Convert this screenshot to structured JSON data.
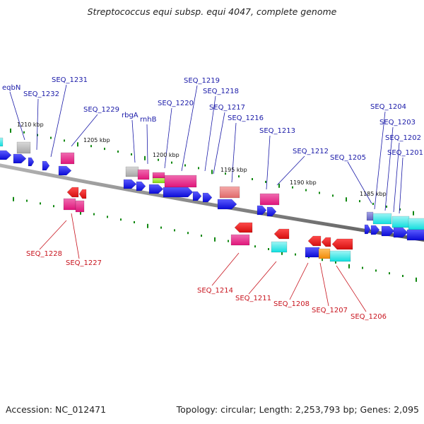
{
  "title": "Streptococcus equi subsp. equi 4047, complete genome",
  "footer": {
    "accession": "Accession: NC_012471",
    "topology": "Topology: circular; Length: 2,253,793 bp; Genes: 2,095"
  },
  "scale_labels": [
    "1210 kbp",
    "1205 kbp",
    "1200 kbp",
    "1195 kbp",
    "1190 kbp",
    "1185 kbp"
  ],
  "labels_top": [
    "eqbN",
    "SEQ_1232",
    "SEQ_1231",
    "SEQ_1229",
    "rbgA",
    "rnhB",
    "SEQ_1220",
    "SEQ_1219",
    "SEQ_1218",
    "SEQ_1217",
    "SEQ_1216",
    "SEQ_1213",
    "SEQ_1212",
    "SEQ_1205",
    "SEQ_1204",
    "SEQ_1203",
    "SEQ_1202",
    "SEQ_1201"
  ],
  "labels_bottom": [
    "SEQ_1228",
    "SEQ_1227",
    "SEQ_1214",
    "SEQ_1211",
    "SEQ_1208",
    "SEQ_1207",
    "SEQ_1206"
  ],
  "colors": {
    "backbone": "#8a8a8a",
    "cds_forward": "#1010e0",
    "cds_reverse": "#e01010",
    "magenta": "#e0157a",
    "cyan": "#10dede",
    "gray": "#b4b4b4",
    "salmon": "#e77f7f",
    "orange": "#f59210",
    "lime": "#8ee010",
    "purple": "#7777cc",
    "tick": "#118811",
    "label_top": "#1a1aa8",
    "label_bottom": "#c8141e"
  }
}
